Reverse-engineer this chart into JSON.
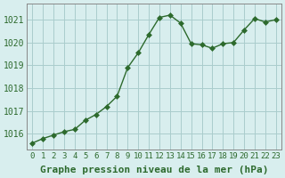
{
  "x": [
    0,
    1,
    2,
    3,
    4,
    5,
    6,
    7,
    8,
    9,
    10,
    11,
    12,
    13,
    14,
    15,
    16,
    17,
    18,
    19,
    20,
    21,
    22,
    23
  ],
  "y": [
    1015.6,
    1015.8,
    1015.95,
    1016.1,
    1016.2,
    1016.6,
    1016.85,
    1017.2,
    1017.65,
    1018.9,
    1019.55,
    1020.35,
    1021.1,
    1021.2,
    1020.85,
    1019.95,
    1019.9,
    1019.75,
    1019.95,
    1020.0,
    1020.55,
    1021.05,
    1020.9,
    1021.0
  ],
  "line_color": "#2d6a2d",
  "marker": "D",
  "marker_size": 3,
  "bg_color": "#d8eeee",
  "grid_color": "#aacccc",
  "ylabel_ticks": [
    1016,
    1017,
    1018,
    1019,
    1020,
    1021
  ],
  "xlabel": "Graphe pression niveau de la mer (hPa)",
  "xlabel_fontsize": 8,
  "tick_fontsize": 7,
  "ylim": [
    1015.3,
    1021.7
  ],
  "xlim": [
    -0.5,
    23.5
  ]
}
